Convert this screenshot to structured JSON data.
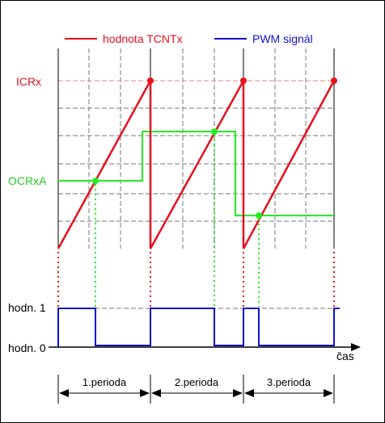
{
  "legend": {
    "tcnt_label": "hodnota TCNTx",
    "pwm_label": "PWM signál"
  },
  "labels": {
    "icr": "ICRx",
    "ocr": "OCRxA",
    "high": "hodn. 1",
    "low": "hodn. 0",
    "time": "čas"
  },
  "periods": [
    "1.perioda",
    "2.perioda",
    "3.perioda"
  ],
  "colors": {
    "tcnt": "#e8101e",
    "pwm": "#1010d0",
    "ocr": "#22ee22",
    "frame": "#000000",
    "grid": "#777777"
  }
}
